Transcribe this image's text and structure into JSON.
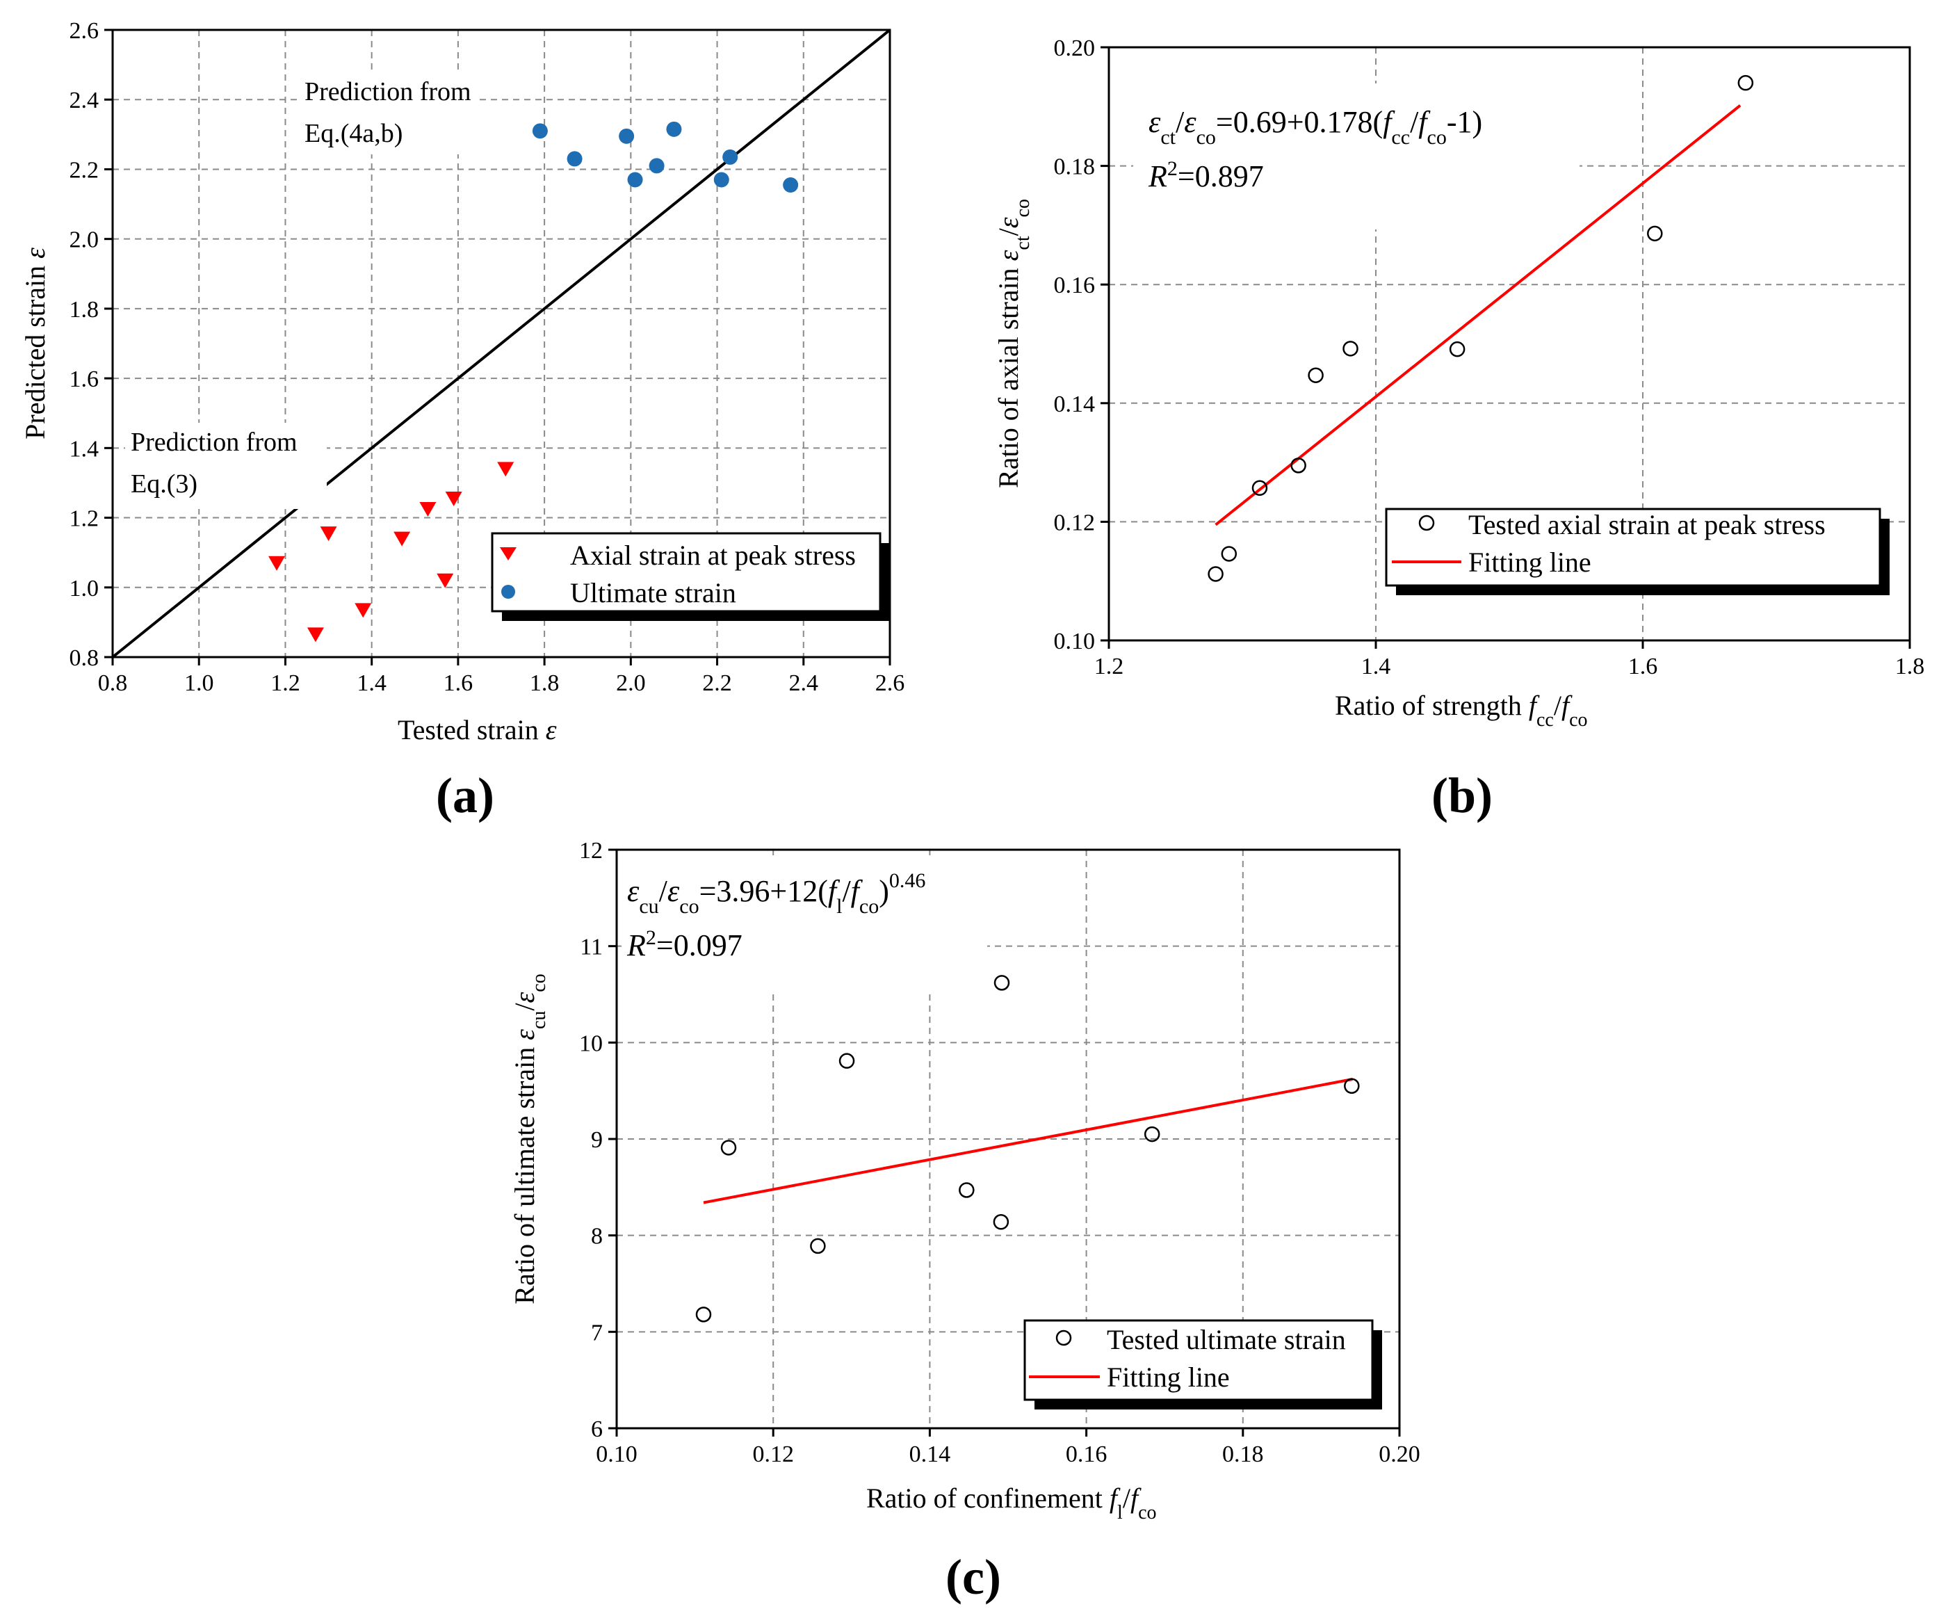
{
  "chart_data": [
    {
      "panel": "(a)",
      "type": "scatter",
      "xlabel": "Tested strain",
      "xlabel_symbol": "ε",
      "ylabel": "Predicted strain",
      "ylabel_symbol": "ε",
      "xlim": [
        0.8,
        2.6
      ],
      "ylim": [
        0.8,
        2.6
      ],
      "xticks": [
        "0.8",
        "1.0",
        "1.2",
        "1.4",
        "1.6",
        "1.8",
        "2.0",
        "2.2",
        "2.4",
        "2.6"
      ],
      "yticks": [
        "0.8",
        "1.0",
        "1.2",
        "1.4",
        "1.6",
        "1.8",
        "2.0",
        "2.2",
        "2.4",
        "2.6"
      ],
      "grid": true,
      "reference_line": {
        "x": [
          0.8,
          2.6
        ],
        "y": [
          0.8,
          2.6
        ],
        "color": "#000000"
      },
      "annotations": [
        {
          "lines": [
            "Prediction from",
            "Eq.(4a,b)"
          ]
        },
        {
          "lines": [
            "Prediction from",
            "Eq.(3)"
          ]
        }
      ],
      "legend_position": "bottom-right",
      "series": [
        {
          "name": "Axial strain at peak stress",
          "marker": "triangle-down",
          "color": "#ff0000",
          "x": [
            1.18,
            1.27,
            1.3,
            1.38,
            1.47,
            1.53,
            1.57,
            1.59,
            1.71
          ],
          "y": [
            1.07,
            0.865,
            1.155,
            0.935,
            1.14,
            1.225,
            1.02,
            1.255,
            1.34
          ]
        },
        {
          "name": "Ultimate strain",
          "marker": "circle",
          "color": "#1f6eb4",
          "x": [
            1.79,
            1.87,
            1.99,
            2.01,
            2.06,
            2.1,
            2.21,
            2.23,
            2.37
          ],
          "y": [
            2.31,
            2.23,
            2.295,
            2.17,
            2.21,
            2.315,
            2.17,
            2.235,
            2.155
          ]
        }
      ]
    },
    {
      "panel": "(b)",
      "type": "scatter",
      "xlabel": "Ratio of strength ",
      "xlabel_fcc": "f",
      "xlabel_fcc_sub": "cc",
      "xlabel_fco": "f",
      "xlabel_fco_sub": "co",
      "ylabel": "Ratio of axial strain ",
      "ylabel_eps": "ε",
      "ylabel_sub1": "ct",
      "ylabel_sub2": "co",
      "xlim": [
        1.2,
        1.8
      ],
      "ylim": [
        0.1,
        0.2
      ],
      "xticks": [
        "1.2",
        "1.4",
        "1.6",
        "1.8"
      ],
      "yticks": [
        "0.10",
        "0.12",
        "0.14",
        "0.16",
        "0.18",
        "0.20"
      ],
      "grid": true,
      "equation": {
        "lhs_sub1": "ct",
        "lhs_sub2": "co",
        "rhs": "=0.69+0.178(",
        "f": "f",
        "sub3": "cc",
        "slash": "/",
        "sub4": "co",
        "tail": "-1)"
      },
      "r2": {
        "symbol": "R",
        "power": "2",
        "value": "=0.897"
      },
      "legend_position": "bottom-right",
      "series": [
        {
          "name": "Tested axial strain at peak stress",
          "marker": "open-circle",
          "color": "#000000",
          "x": [
            1.28,
            1.29,
            1.313,
            1.342,
            1.355,
            1.381,
            1.461,
            1.609,
            1.677
          ],
          "y": [
            0.1112,
            0.1146,
            0.1257,
            0.1295,
            0.1447,
            0.1492,
            0.1491,
            0.1686,
            0.194
          ]
        },
        {
          "name": "Fitting line",
          "type": "line",
          "color": "#ff0000",
          "x": [
            1.28,
            1.673
          ],
          "y": [
            0.1195,
            0.1902
          ]
        }
      ]
    },
    {
      "panel": "(c)",
      "type": "scatter",
      "xlabel": "Ratio of confinement ",
      "xlabel_f": "f",
      "xlabel_l_sub": "l",
      "xlabel_fco": "f",
      "xlabel_fco_sub": "co",
      "ylabel": "Ratio of ultimate strain  ",
      "ylabel_eps": "ε",
      "ylabel_sub1": "cu",
      "ylabel_sub2": "co",
      "xlim": [
        0.1,
        0.2
      ],
      "ylim": [
        6,
        12
      ],
      "xticks": [
        "0.10",
        "0.12",
        "0.14",
        "0.16",
        "0.18",
        "0.20"
      ],
      "yticks": [
        "6",
        "7",
        "8",
        "9",
        "10",
        "11",
        "12"
      ],
      "grid": true,
      "equation": {
        "lhs_sub1": "cu",
        "lhs_sub2": "co",
        "rhs": "=3.96+12(",
        "f": "f",
        "sub3": "l",
        "slash": "/",
        "sub4": "co",
        "tail": ")",
        "power": "0.46"
      },
      "r2": {
        "symbol": "R",
        "power": "2",
        "value": "=0.097"
      },
      "legend_position": "bottom-right",
      "series": [
        {
          "name": "Tested ultimate strain",
          "marker": "open-circle",
          "color": "#000000",
          "x": [
            0.1111,
            0.1143,
            0.1257,
            0.1294,
            0.1447,
            0.1491,
            0.1492,
            0.1684,
            0.1939
          ],
          "y": [
            7.18,
            8.91,
            7.89,
            9.81,
            8.47,
            8.14,
            10.62,
            9.05,
            9.55
          ]
        },
        {
          "name": "Fitting line",
          "type": "line",
          "color": "#ff0000",
          "x": [
            0.1111,
            0.194
          ],
          "y": [
            8.34,
            9.62
          ]
        }
      ]
    }
  ]
}
